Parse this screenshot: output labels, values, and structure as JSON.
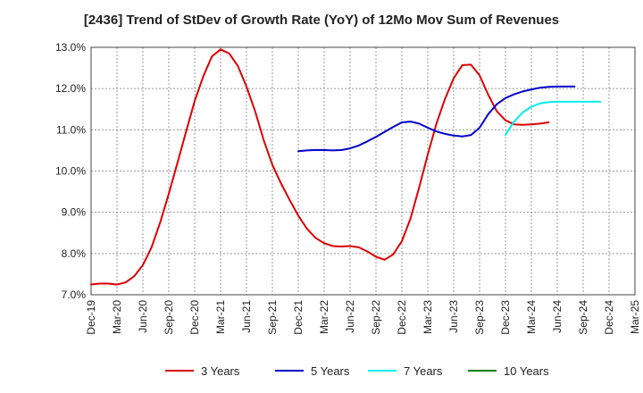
{
  "chart_data": {
    "type": "line",
    "title": "[2436]  Trend of StDev of Growth Rate (YoY) of 12Mo Mov Sum of Revenues",
    "xlabel": "",
    "ylabel": "",
    "ylim": [
      7.0,
      13.0
    ],
    "yticks": [
      "7.0%",
      "8.0%",
      "9.0%",
      "10.0%",
      "11.0%",
      "12.0%",
      "13.0%"
    ],
    "xticks": [
      "Dec-19",
      "Mar-20",
      "Jun-20",
      "Sep-20",
      "Dec-20",
      "Mar-21",
      "Jun-21",
      "Sep-21",
      "Dec-21",
      "Mar-22",
      "Jun-22",
      "Sep-22",
      "Dec-22",
      "Mar-23",
      "Jun-23",
      "Sep-23",
      "Dec-23",
      "Mar-24",
      "Jun-24",
      "Sep-24",
      "Dec-24",
      "Mar-25"
    ],
    "grid": true,
    "legend_position": "bottom",
    "series": [
      {
        "name": "3 Years",
        "color": "#dd0000",
        "start_index": 0,
        "values": [
          7.25,
          7.27,
          7.27,
          7.25,
          7.3,
          7.45,
          7.72,
          8.15,
          8.75,
          9.45,
          10.2,
          10.95,
          11.7,
          12.3,
          12.78,
          12.95,
          12.85,
          12.55,
          12.05,
          11.45,
          10.75,
          10.15,
          9.7,
          9.3,
          8.92,
          8.6,
          8.38,
          8.25,
          8.18,
          8.17,
          8.18,
          8.15,
          8.05,
          7.92,
          7.85,
          7.98,
          8.3,
          8.85,
          9.6,
          10.4,
          11.15,
          11.75,
          12.25,
          12.57,
          12.58,
          12.32,
          11.85,
          11.45,
          11.23,
          11.13,
          11.12,
          11.13,
          11.15,
          11.18
        ]
      },
      {
        "name": "5 Years",
        "color": "#0000cc",
        "start_index": 24,
        "values": [
          10.48,
          10.5,
          10.51,
          10.51,
          10.5,
          10.51,
          10.55,
          10.62,
          10.72,
          10.83,
          10.95,
          11.07,
          11.18,
          11.2,
          11.15,
          11.05,
          10.96,
          10.9,
          10.86,
          10.84,
          10.87,
          11.05,
          11.38,
          11.62,
          11.77,
          11.86,
          11.93,
          11.98,
          12.02,
          12.04,
          12.05,
          12.05,
          12.05
        ]
      },
      {
        "name": "7 Years",
        "color": "#00eeee",
        "start_index": 48,
        "values": [
          10.88,
          11.2,
          11.42,
          11.56,
          11.64,
          11.67,
          11.68,
          11.68,
          11.68,
          11.68,
          11.68,
          11.68
        ]
      },
      {
        "name": "10 Years",
        "color": "#008000",
        "start_index": null,
        "values": []
      }
    ]
  }
}
